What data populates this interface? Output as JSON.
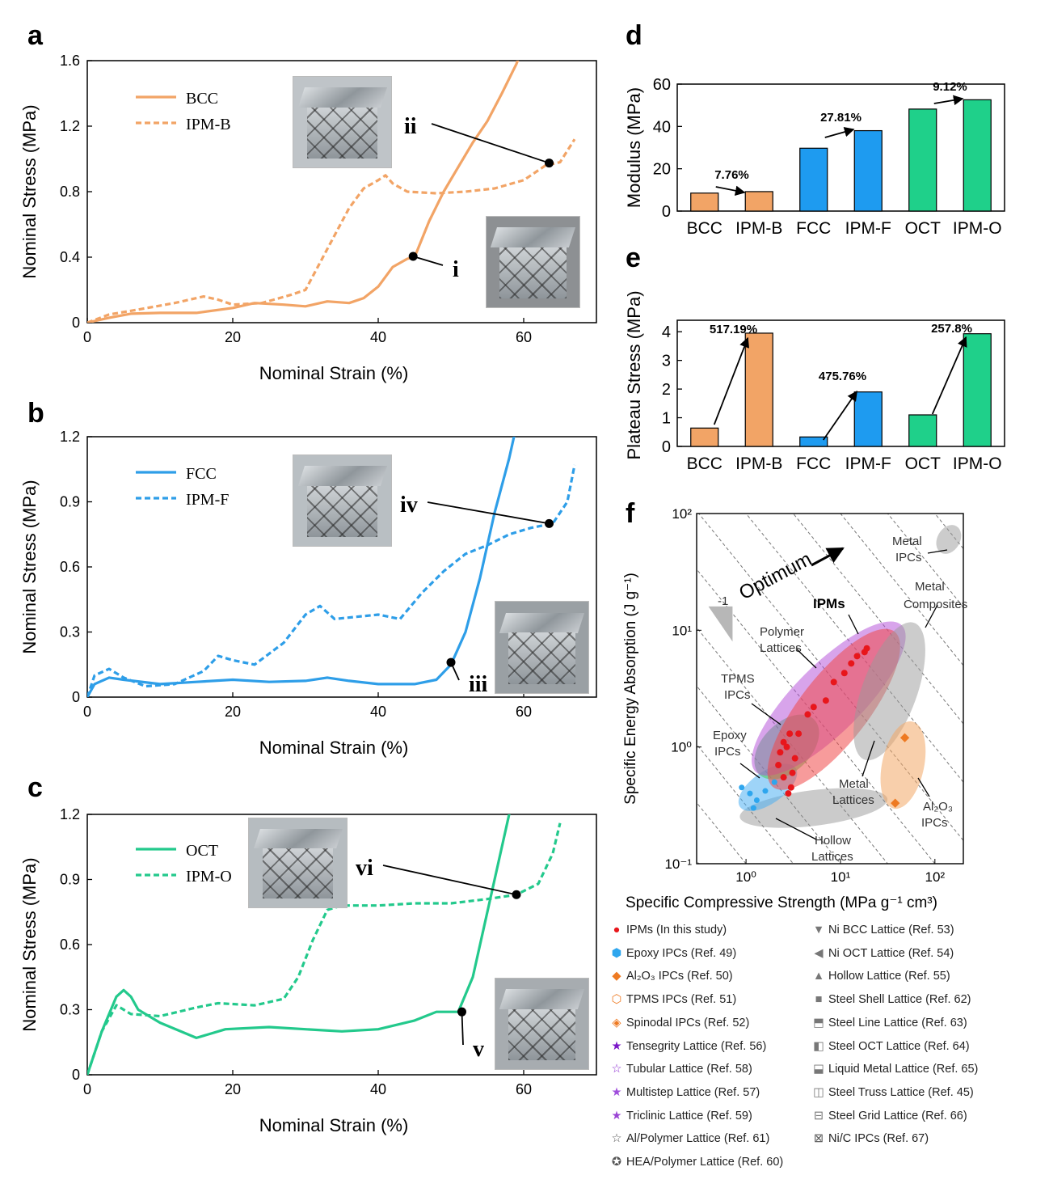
{
  "panels": {
    "a": {
      "label": "a",
      "xlabel": "Nominal Strain (%)",
      "ylabel": "Nominal Stress (MPa)",
      "xlim": [
        0,
        70
      ],
      "ylim": [
        0,
        1.6
      ],
      "xticks": [
        "0",
        "20",
        "40",
        "60"
      ],
      "yticks": [
        "0",
        "0.4",
        "0.8",
        "1.2",
        "1.6"
      ],
      "color": "#F2A466",
      "legend": [
        "BCC",
        "IPM-B"
      ],
      "solid": [
        [
          0,
          0
        ],
        [
          3,
          0.03
        ],
        [
          6,
          0.055
        ],
        [
          10,
          0.06
        ],
        [
          15,
          0.06
        ],
        [
          20,
          0.09
        ],
        [
          23,
          0.12
        ],
        [
          27,
          0.11
        ],
        [
          30,
          0.1
        ],
        [
          33,
          0.13
        ],
        [
          36,
          0.12
        ],
        [
          38,
          0.15
        ],
        [
          40,
          0.22
        ],
        [
          42,
          0.34
        ],
        [
          44,
          0.39
        ],
        [
          45,
          0.4
        ],
        [
          47,
          0.62
        ],
        [
          49,
          0.8
        ],
        [
          51,
          0.95
        ],
        [
          53,
          1.1
        ],
        [
          55,
          1.23
        ],
        [
          57,
          1.4
        ],
        [
          59,
          1.58
        ],
        [
          60,
          1.7
        ]
      ],
      "dashed": [
        [
          0,
          0
        ],
        [
          3,
          0.05
        ],
        [
          7,
          0.08
        ],
        [
          12,
          0.12
        ],
        [
          16,
          0.16
        ],
        [
          18,
          0.14
        ],
        [
          20,
          0.11
        ],
        [
          24,
          0.12
        ],
        [
          28,
          0.17
        ],
        [
          30,
          0.2
        ],
        [
          33,
          0.45
        ],
        [
          36,
          0.7
        ],
        [
          38,
          0.82
        ],
        [
          40,
          0.87
        ],
        [
          41,
          0.9
        ],
        [
          42,
          0.85
        ],
        [
          44,
          0.8
        ],
        [
          48,
          0.79
        ],
        [
          52,
          0.8
        ],
        [
          56,
          0.82
        ],
        [
          60,
          0.87
        ],
        [
          63,
          0.96
        ],
        [
          65,
          0.98
        ],
        [
          67,
          1.12
        ]
      ],
      "points": [
        {
          "x": 44.8,
          "y": 0.405,
          "label": "i"
        },
        {
          "x": 63.5,
          "y": 0.975,
          "label": "ii"
        }
      ]
    },
    "b": {
      "label": "b",
      "xlabel": "Nominal Strain (%)",
      "ylabel": "Nominal Stress (MPa)",
      "xlim": [
        0,
        70
      ],
      "ylim": [
        0,
        1.2
      ],
      "xticks": [
        "0",
        "20",
        "40",
        "60"
      ],
      "yticks": [
        "0",
        "0.3",
        "0.6",
        "0.9",
        "1.2"
      ],
      "color": "#2E9EE8",
      "legend": [
        "FCC",
        "IPM-F"
      ],
      "solid": [
        [
          0,
          0
        ],
        [
          1,
          0.06
        ],
        [
          3,
          0.09
        ],
        [
          5,
          0.08
        ],
        [
          10,
          0.06
        ],
        [
          15,
          0.07
        ],
        [
          20,
          0.08
        ],
        [
          25,
          0.07
        ],
        [
          30,
          0.075
        ],
        [
          33,
          0.09
        ],
        [
          36,
          0.075
        ],
        [
          40,
          0.06
        ],
        [
          45,
          0.06
        ],
        [
          48,
          0.08
        ],
        [
          50,
          0.15
        ],
        [
          52,
          0.3
        ],
        [
          54,
          0.55
        ],
        [
          56,
          0.85
        ],
        [
          58,
          1.1
        ],
        [
          59,
          1.25
        ]
      ],
      "dashed": [
        [
          0,
          0
        ],
        [
          1,
          0.1
        ],
        [
          3,
          0.13
        ],
        [
          5,
          0.09
        ],
        [
          8,
          0.05
        ],
        [
          12,
          0.06
        ],
        [
          16,
          0.12
        ],
        [
          18,
          0.19
        ],
        [
          20,
          0.17
        ],
        [
          23,
          0.15
        ],
        [
          27,
          0.25
        ],
        [
          30,
          0.38
        ],
        [
          32,
          0.42
        ],
        [
          34,
          0.36
        ],
        [
          37,
          0.37
        ],
        [
          40,
          0.38
        ],
        [
          43,
          0.36
        ],
        [
          46,
          0.48
        ],
        [
          49,
          0.58
        ],
        [
          52,
          0.66
        ],
        [
          55,
          0.7
        ],
        [
          58,
          0.75
        ],
        [
          61,
          0.78
        ],
        [
          64,
          0.8
        ],
        [
          66,
          0.9
        ],
        [
          67,
          1.07
        ]
      ],
      "points": [
        {
          "x": 50,
          "y": 0.16,
          "label": "iii"
        },
        {
          "x": 63.5,
          "y": 0.8,
          "label": "iv"
        }
      ]
    },
    "c": {
      "label": "c",
      "xlabel": "Nominal Strain (%)",
      "ylabel": "Nominal Stress (MPa)",
      "xlim": [
        0,
        70
      ],
      "ylim": [
        0,
        1.2
      ],
      "xticks": [
        "0",
        "20",
        "40",
        "60"
      ],
      "yticks": [
        "0",
        "0.3",
        "0.6",
        "0.9",
        "1.2"
      ],
      "color": "#23C98C",
      "legend": [
        "OCT",
        "IPM-O"
      ],
      "solid": [
        [
          0,
          0
        ],
        [
          2,
          0.2
        ],
        [
          4,
          0.36
        ],
        [
          5,
          0.39
        ],
        [
          6,
          0.36
        ],
        [
          7,
          0.3
        ],
        [
          10,
          0.24
        ],
        [
          15,
          0.17
        ],
        [
          19,
          0.21
        ],
        [
          25,
          0.22
        ],
        [
          30,
          0.21
        ],
        [
          35,
          0.2
        ],
        [
          40,
          0.21
        ],
        [
          45,
          0.25
        ],
        [
          48,
          0.29
        ],
        [
          51,
          0.29
        ],
        [
          53,
          0.45
        ],
        [
          55,
          0.75
        ],
        [
          57,
          1.05
        ],
        [
          58,
          1.2
        ],
        [
          59,
          1.25
        ]
      ],
      "dashed": [
        [
          0,
          0
        ],
        [
          2,
          0.2
        ],
        [
          4,
          0.32
        ],
        [
          6,
          0.28
        ],
        [
          10,
          0.27
        ],
        [
          15,
          0.31
        ],
        [
          18,
          0.33
        ],
        [
          23,
          0.32
        ],
        [
          27,
          0.35
        ],
        [
          29,
          0.45
        ],
        [
          31,
          0.62
        ],
        [
          33,
          0.76
        ],
        [
          35,
          0.78
        ],
        [
          40,
          0.78
        ],
        [
          45,
          0.79
        ],
        [
          50,
          0.79
        ],
        [
          55,
          0.81
        ],
        [
          59,
          0.83
        ],
        [
          62,
          0.88
        ],
        [
          64,
          1.02
        ],
        [
          65,
          1.16
        ]
      ],
      "points": [
        {
          "x": 51.5,
          "y": 0.29,
          "label": "v"
        },
        {
          "x": 59,
          "y": 0.83,
          "label": "vi"
        }
      ]
    }
  },
  "chart_data": [
    {
      "type": "line",
      "title": "a",
      "xlabel": "Nominal Strain (%)",
      "ylabel": "Nominal Stress (MPa)",
      "series": [
        {
          "name": "BCC",
          "style": "solid"
        },
        {
          "name": "IPM-B",
          "style": "dashed"
        }
      ]
    },
    {
      "type": "line",
      "title": "b",
      "xlabel": "Nominal Strain (%)",
      "ylabel": "Nominal Stress (MPa)",
      "series": [
        {
          "name": "FCC",
          "style": "solid"
        },
        {
          "name": "IPM-F",
          "style": "dashed"
        }
      ]
    },
    {
      "type": "line",
      "title": "c",
      "xlabel": "Nominal Strain (%)",
      "ylabel": "Nominal Stress (MPa)",
      "series": [
        {
          "name": "OCT",
          "style": "solid"
        },
        {
          "name": "IPM-O",
          "style": "dashed"
        }
      ]
    },
    {
      "type": "bar",
      "title": "d",
      "ylabel": "Modulus (MPa)",
      "ylim": [
        0,
        60
      ],
      "categories": [
        "BCC",
        "IPM-B",
        "FCC",
        "IPM-F",
        "OCT",
        "IPM-O"
      ],
      "values": [
        8.5,
        9.2,
        29.7,
        38,
        48.2,
        52.6
      ],
      "colors": [
        "#F2A466",
        "#F2A466",
        "#1E9BF0",
        "#1E9BF0",
        "#1FD08A",
        "#1FD08A"
      ],
      "yticks": [
        "0",
        "20",
        "40",
        "60"
      ],
      "annotations": [
        {
          "from": 0,
          "to": 1,
          "text": "7.76%"
        },
        {
          "from": 2,
          "to": 3,
          "text": "27.81%"
        },
        {
          "from": 4,
          "to": 5,
          "text": "9.12%"
        }
      ]
    },
    {
      "type": "bar",
      "title": "e",
      "ylabel": "Plateau Stress (MPa)",
      "ylim": [
        0,
        4.4
      ],
      "categories": [
        "BCC",
        "IPM-B",
        "FCC",
        "IPM-F",
        "OCT",
        "IPM-O"
      ],
      "values": [
        0.64,
        3.95,
        0.33,
        1.9,
        1.1,
        3.93
      ],
      "colors": [
        "#F2A466",
        "#F2A466",
        "#1E9BF0",
        "#1E9BF0",
        "#1FD08A",
        "#1FD08A"
      ],
      "yticks": [
        "0",
        "1",
        "2",
        "3",
        "4"
      ],
      "annotations": [
        {
          "from": 0,
          "to": 1,
          "text": "517.19%"
        },
        {
          "from": 2,
          "to": 3,
          "text": "475.76%"
        },
        {
          "from": 4,
          "to": 5,
          "text": "257.8%"
        }
      ]
    },
    {
      "type": "scatter",
      "title": "f",
      "xlabel": "Specific Compressive Strength (MPa g⁻¹ cm³)",
      "ylabel": "Specific Energy Absorption (J g⁻¹)",
      "xscale": "log",
      "yscale": "log",
      "xlim": [
        0.3,
        200
      ],
      "ylim": [
        0.1,
        100
      ],
      "xticks": [
        "10⁰",
        "10¹",
        "10²"
      ],
      "yticks": [
        "10⁻¹",
        "10⁰",
        "10¹",
        "10²"
      ],
      "labels": [
        "Optimum",
        "-1",
        "IPMs",
        "Polymer Lattices",
        "TPMS IPCs",
        "Epoxy IPCs",
        "Metal Lattices",
        "Hollow Lattices",
        "Metal Composites",
        "Metal IPCs",
        "Al₂O₃ IPCs"
      ],
      "ipms": [
        [
          2.3,
          0.9
        ],
        [
          2.5,
          1.1
        ],
        [
          2.7,
          1.0
        ],
        [
          2.9,
          1.3
        ],
        [
          3.1,
          0.6
        ],
        [
          3.3,
          0.8
        ],
        [
          2.5,
          0.55
        ],
        [
          3.6,
          1.3
        ],
        [
          4.5,
          1.9
        ],
        [
          5.2,
          2.2
        ],
        [
          7,
          2.5
        ],
        [
          8.5,
          3.6
        ],
        [
          11,
          4.3
        ],
        [
          13,
          5.2
        ],
        [
          15,
          6.0
        ],
        [
          18,
          6.5
        ],
        [
          19,
          7
        ],
        [
          2.8,
          0.4
        ],
        [
          2.2,
          0.7
        ],
        [
          3,
          0.45
        ]
      ],
      "epoxy": [
        [
          0.9,
          0.45
        ],
        [
          1.1,
          0.4
        ],
        [
          1.3,
          0.35
        ],
        [
          1.6,
          0.42
        ],
        [
          2.0,
          0.5
        ],
        [
          1.2,
          0.3
        ]
      ],
      "al2o3": [
        [
          38,
          0.33
        ],
        [
          48,
          1.2
        ]
      ]
    }
  ],
  "legend": [
    {
      "symbol": "●",
      "color": "#e8161b",
      "text": "IPMs (In this study)"
    },
    {
      "symbol": "▼",
      "color": "#777777",
      "text": "Ni BCC Lattice (Ref. 53)"
    },
    {
      "symbol": "⬢",
      "color": "#2ea6ee",
      "text": "Epoxy IPCs (Ref. 49)"
    },
    {
      "symbol": "◀",
      "color": "#777777",
      "text": "Ni OCT Lattice (Ref. 54)"
    },
    {
      "symbol": "◆",
      "color": "#ee7a22",
      "text": "Al₂O₃ IPCs (Ref. 50)"
    },
    {
      "symbol": "▲",
      "color": "#777777",
      "text": "Hollow Lattice (Ref. 55)"
    },
    {
      "symbol": "⬡",
      "color": "#ee7a22",
      "text": "TPMS IPCs (Ref. 51)"
    },
    {
      "symbol": "■",
      "color": "#777777",
      "text": "Steel Shell Lattice (Ref. 62)"
    },
    {
      "symbol": "◈",
      "color": "#ee7a22",
      "text": "Spinodal IPCs (Ref. 52)"
    },
    {
      "symbol": "⬒",
      "color": "#777777",
      "text": "Steel Line Lattice (Ref. 63)"
    },
    {
      "symbol": "★",
      "color": "#7a16c8",
      "text": "Tensegrity Lattice (Ref. 56)"
    },
    {
      "symbol": "◧",
      "color": "#777777",
      "text": "Steel OCT Lattice (Ref. 64)"
    },
    {
      "symbol": "☆",
      "color": "#8a2ad0",
      "text": "Tubular Lattice (Ref. 58)"
    },
    {
      "symbol": "⬓",
      "color": "#777777",
      "text": "Liquid Metal Lattice (Ref. 65)"
    },
    {
      "symbol": "★",
      "color": "#a04fdc",
      "text": "Multistep Lattice (Ref. 57)"
    },
    {
      "symbol": "◫",
      "color": "#777777",
      "text": "Steel Truss Lattice (Ref. 45)"
    },
    {
      "symbol": "★",
      "color": "#9a44d4",
      "text": "Triclinic Lattice (Ref. 59)"
    },
    {
      "symbol": "⊟",
      "color": "#777777",
      "text": "Steel Grid Lattice (Ref. 66)"
    },
    {
      "symbol": "☆",
      "color": "#555555",
      "text": "Al/Polymer Lattice (Ref. 61)"
    },
    {
      "symbol": "⊠",
      "color": "#555555",
      "text": "Ni/C IPCs (Ref. 67)"
    },
    {
      "symbol": "✪",
      "color": "#555555",
      "text": "HEA/Polymer Lattice (Ref. 60)"
    }
  ]
}
